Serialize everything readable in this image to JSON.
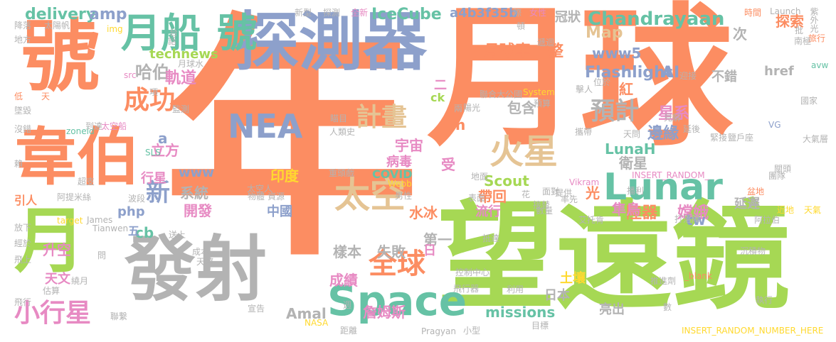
{
  "palette": {
    "orange": "#fc8d62",
    "green": "#a6d854",
    "blue": "#8da0cb",
    "teal": "#66c2a5",
    "grey": "#b3b3b3",
    "tan": "#e5c494",
    "pink": "#e78ac3",
    "yellow": "#ffd92f"
  },
  "words": [
    {
      "text": "年",
      "color": "orange"
    },
    {
      "text": "月球",
      "color": "orange"
    },
    {
      "text": "望遠鏡",
      "color": "green"
    },
    {
      "text": "探測器",
      "color": "blue"
    },
    {
      "text": "號",
      "color": "orange"
    },
    {
      "text": "韋伯",
      "color": "orange"
    },
    {
      "text": "發射",
      "color": "grey"
    },
    {
      "text": "月",
      "color": "green"
    },
    {
      "text": "月船",
      "color": "teal"
    },
    {
      "text": "號",
      "color": "teal"
    },
    {
      "text": "Space",
      "color": "teal"
    },
    {
      "text": "Lunar",
      "color": "teal"
    },
    {
      "text": "太空",
      "color": "tan"
    },
    {
      "text": "火星",
      "color": "tan"
    },
    {
      "text": "全球",
      "color": "orange"
    },
    {
      "text": "NEA",
      "color": "blue"
    },
    {
      "text": "計畫",
      "color": "tan"
    },
    {
      "text": "小行星",
      "color": "pink"
    },
    {
      "text": "成功",
      "color": "orange"
    },
    {
      "text": "預計",
      "color": "grey"
    },
    {
      "text": "新",
      "color": "blue"
    },
    {
      "text": "Chandrayaan",
      "color": "teal"
    },
    {
      "text": "delivery",
      "color": "teal"
    },
    {
      "text": "amp",
      "color": "blue"
    },
    {
      "text": "IceCube",
      "color": "teal"
    },
    {
      "text": "a4b3f35b",
      "color": "blue"
    },
    {
      "text": "Flashlight",
      "color": "blue"
    },
    {
      "text": "月球車",
      "color": "orange"
    },
    {
      "text": "整",
      "color": "orange"
    },
    {
      "text": "哈伯",
      "color": "grey"
    },
    {
      "text": "technews",
      "color": "green"
    },
    {
      "text": "www5",
      "color": "blue"
    },
    {
      "text": "AI",
      "color": "blue"
    },
    {
      "text": "Map",
      "color": "tan"
    },
    {
      "text": "軌道",
      "color": "pink"
    },
    {
      "text": "紅",
      "color": "orange"
    },
    {
      "text": "星系",
      "color": "pink"
    },
    {
      "text": "邊緣",
      "color": "blue"
    },
    {
      "text": "LunaH",
      "color": "teal"
    },
    {
      "text": "衛星",
      "color": "grey"
    },
    {
      "text": "宇宙",
      "color": "pink"
    },
    {
      "text": "Scout",
      "color": "green"
    },
    {
      "text": "印度",
      "color": "yellow"
    },
    {
      "text": "帶回",
      "color": "orange"
    },
    {
      "text": "陸器",
      "color": "orange"
    },
    {
      "text": "嫦娥",
      "color": "pink"
    },
    {
      "text": "水冰",
      "color": "orange"
    },
    {
      "text": "中國",
      "color": "blue"
    },
    {
      "text": "系統",
      "color": "grey"
    },
    {
      "text": "開發",
      "color": "pink"
    },
    {
      "text": "行星",
      "color": "pink"
    },
    {
      "text": "www",
      "color": "blue"
    },
    {
      "text": "php",
      "color": "blue"
    },
    {
      "text": "cb",
      "color": "teal"
    },
    {
      "text": "升空",
      "color": "pink"
    },
    {
      "text": "天文",
      "color": "pink"
    },
    {
      "text": "樣本",
      "color": "grey"
    },
    {
      "text": "失敗",
      "color": "grey"
    },
    {
      "text": "Amal",
      "color": "grey"
    },
    {
      "text": "成績",
      "color": "pink"
    },
    {
      "text": "詹姆斯",
      "color": "pink"
    },
    {
      "text": "missions",
      "color": "teal"
    },
    {
      "text": "COVID",
      "color": "teal"
    },
    {
      "text": "第一",
      "color": "grey"
    },
    {
      "text": "病毒",
      "color": "pink"
    },
    {
      "text": "光",
      "color": "orange"
    },
    {
      "text": "隼鳥",
      "color": "pink"
    },
    {
      "text": "立方",
      "color": "pink"
    },
    {
      "text": "引人",
      "color": "orange"
    },
    {
      "text": "包含",
      "color": "grey"
    },
    {
      "text": "冠狀",
      "color": "grey"
    },
    {
      "text": "探索",
      "color": "orange"
    },
    {
      "text": "不錯",
      "color": "grey"
    },
    {
      "text": "tw",
      "color": "blue"
    },
    {
      "text": "延遲",
      "color": "grey"
    },
    {
      "text": "土壤",
      "color": "yellow"
    },
    {
      "text": "流行",
      "color": "pink"
    },
    {
      "text": "亮出",
      "color": "grey"
    },
    {
      "text": "日本",
      "color": "grey"
    },
    {
      "text": "受",
      "color": "pink"
    },
    {
      "text": "次",
      "color": "grey"
    },
    {
      "text": "href",
      "color": "grey"
    },
    {
      "text": "INSERT_RANDOM_NUMBER_HERE",
      "color": "yellow"
    },
    {
      "text": "Launch",
      "color": "grey"
    },
    {
      "text": "Pragyan",
      "color": "grey"
    },
    {
      "text": "NASA",
      "color": "yellow"
    },
    {
      "text": "Tianwen",
      "color": "grey"
    },
    {
      "text": "target",
      "color": "yellow"
    },
    {
      "text": "James",
      "color": "grey"
    },
    {
      "text": "zoneid",
      "color": "teal"
    },
    {
      "text": "Vikram",
      "color": "pink"
    },
    {
      "text": "System",
      "color": "yellow"
    },
    {
      "text": "Webb",
      "color": "yellow"
    },
    {
      "text": "VG",
      "color": "blue"
    },
    {
      "text": "SLS",
      "color": "teal"
    },
    {
      "text": "img",
      "color": "yellow"
    },
    {
      "text": "src",
      "color": "pink"
    },
    {
      "text": "avw",
      "color": "teal"
    },
    {
      "text": "_blank",
      "color": "orange"
    },
    {
      "text": "INSERT_RANDOM_",
      "color": "pink"
    },
    {
      "text": "ck",
      "color": "green"
    },
    {
      "text": "a",
      "color": "blue"
    },
    {
      "text": "五",
      "color": "blue"
    },
    {
      "text": "日",
      "color": "pink"
    },
    {
      "text": "n",
      "color": "orange"
    },
    {
      "text": "二",
      "color": "pink"
    },
    {
      "text": "新型",
      "color": "grey"
    },
    {
      "text": "探測",
      "color": "grey"
    },
    {
      "text": "全新",
      "color": "pink"
    },
    {
      "text": "際",
      "color": "grey"
    },
    {
      "text": "女性",
      "color": "pink"
    },
    {
      "text": "時間",
      "color": "orange"
    },
    {
      "text": "紫外光",
      "color": "grey"
    },
    {
      "text": "旅行",
      "color": "orange"
    },
    {
      "text": "國家",
      "color": "grey"
    },
    {
      "text": "大氣層",
      "color": "grey"
    },
    {
      "text": "天氣",
      "color": "yellow"
    },
    {
      "text": "近地",
      "color": "yellow"
    },
    {
      "text": "盆地",
      "color": "orange"
    },
    {
      "text": "團隊",
      "color": "grey"
    },
    {
      "text": "降落",
      "color": "grey"
    },
    {
      "text": "太陽帆",
      "color": "grey"
    },
    {
      "text": "地方",
      "color": "grey"
    },
    {
      "text": "低",
      "color": "orange"
    },
    {
      "text": "天",
      "color": "orange"
    },
    {
      "text": "墜毀",
      "color": "grey"
    },
    {
      "text": "沒錯",
      "color": "grey"
    },
    {
      "text": "到達",
      "color": "grey"
    },
    {
      "text": "太空船",
      "color": "pink"
    },
    {
      "text": "人類史",
      "color": "grey"
    },
    {
      "text": "監測",
      "color": "grey"
    },
    {
      "text": "超支",
      "color": "grey"
    },
    {
      "text": "阿提米絲",
      "color": "grey"
    },
    {
      "text": "放下",
      "color": "grey"
    },
    {
      "text": "經於",
      "color": "grey"
    },
    {
      "text": "飛上",
      "color": "grey"
    },
    {
      "text": "飛行",
      "color": "grey"
    },
    {
      "text": "聯繫",
      "color": "grey"
    },
    {
      "text": "估算",
      "color": "grey"
    },
    {
      "text": "繞月",
      "color": "grey"
    },
    {
      "text": "距離",
      "color": "grey"
    },
    {
      "text": "小型",
      "color": "grey"
    },
    {
      "text": "目標",
      "color": "grey"
    },
    {
      "text": "推進劑",
      "color": "grey"
    },
    {
      "text": "執行",
      "color": "grey"
    },
    {
      "text": "沉積物",
      "color": "grey"
    },
    {
      "text": "數量",
      "color": "grey"
    },
    {
      "text": "面對",
      "color": "grey"
    },
    {
      "text": "提供",
      "color": "grey"
    },
    {
      "text": "艾托肯",
      "color": "grey"
    },
    {
      "text": "阿拉伯",
      "color": "grey"
    },
    {
      "text": "打落陣",
      "color": "grey"
    },
    {
      "text": "聯合大公國",
      "color": "grey"
    },
    {
      "text": "瞄目",
      "color": "grey"
    },
    {
      "text": "控制中心",
      "color": "grey"
    },
    {
      "text": "飛行器",
      "color": "grey"
    },
    {
      "text": "利用",
      "color": "grey"
    },
    {
      "text": "宣告",
      "color": "grey"
    },
    {
      "text": "重頭戲",
      "color": "grey"
    },
    {
      "text": "太空人",
      "color": "grey"
    },
    {
      "text": "資源",
      "color": "grey"
    },
    {
      "text": "男性",
      "color": "grey"
    },
    {
      "text": "物體",
      "color": "grey"
    },
    {
      "text": "成本",
      "color": "grey"
    },
    {
      "text": "天際",
      "color": "grey"
    },
    {
      "text": "表面",
      "color": "grey"
    },
    {
      "text": "地面",
      "color": "grey"
    },
    {
      "text": "攜帶",
      "color": "grey"
    },
    {
      "text": "天問",
      "color": "grey"
    },
    {
      "text": "預算",
      "color": "grey"
    },
    {
      "text": "擊人",
      "color": "grey"
    },
    {
      "text": "位於",
      "color": "grey"
    },
    {
      "text": "見解",
      "color": "grey"
    },
    {
      "text": "延後",
      "color": "grey"
    },
    {
      "text": "率先",
      "color": "grey"
    },
    {
      "text": "播利",
      "color": "grey"
    },
    {
      "text": "南極",
      "color": "grey"
    },
    {
      "text": "批",
      "color": "grey"
    },
    {
      "text": "迎接",
      "color": "grey"
    },
    {
      "text": "波段",
      "color": "grey"
    },
    {
      "text": "項",
      "color": "grey"
    },
    {
      "text": "話",
      "color": "grey"
    },
    {
      "text": "台",
      "color": "grey"
    },
    {
      "text": "月球水",
      "color": "grey"
    },
    {
      "text": "遞迴",
      "color": "grey"
    },
    {
      "text": "陽光",
      "color": "grey"
    },
    {
      "text": "兩",
      "color": "grey"
    },
    {
      "text": "問",
      "color": "grey"
    },
    {
      "text": "數",
      "color": "grey"
    },
    {
      "text": "花",
      "color": "grey"
    },
    {
      "text": "接替",
      "color": "grey"
    },
    {
      "text": "緊接",
      "color": "grey"
    },
    {
      "text": "鹽戶座",
      "color": "grey"
    },
    {
      "text": "關頭",
      "color": "grey"
    },
    {
      "text": "送上",
      "color": "grey"
    },
    {
      "text": "週",
      "color": "grey"
    },
    {
      "text": "抵達",
      "color": "grey"
    },
    {
      "text": "頓",
      "color": "grey"
    },
    {
      "text": "賴",
      "color": "grey"
    }
  ]
}
